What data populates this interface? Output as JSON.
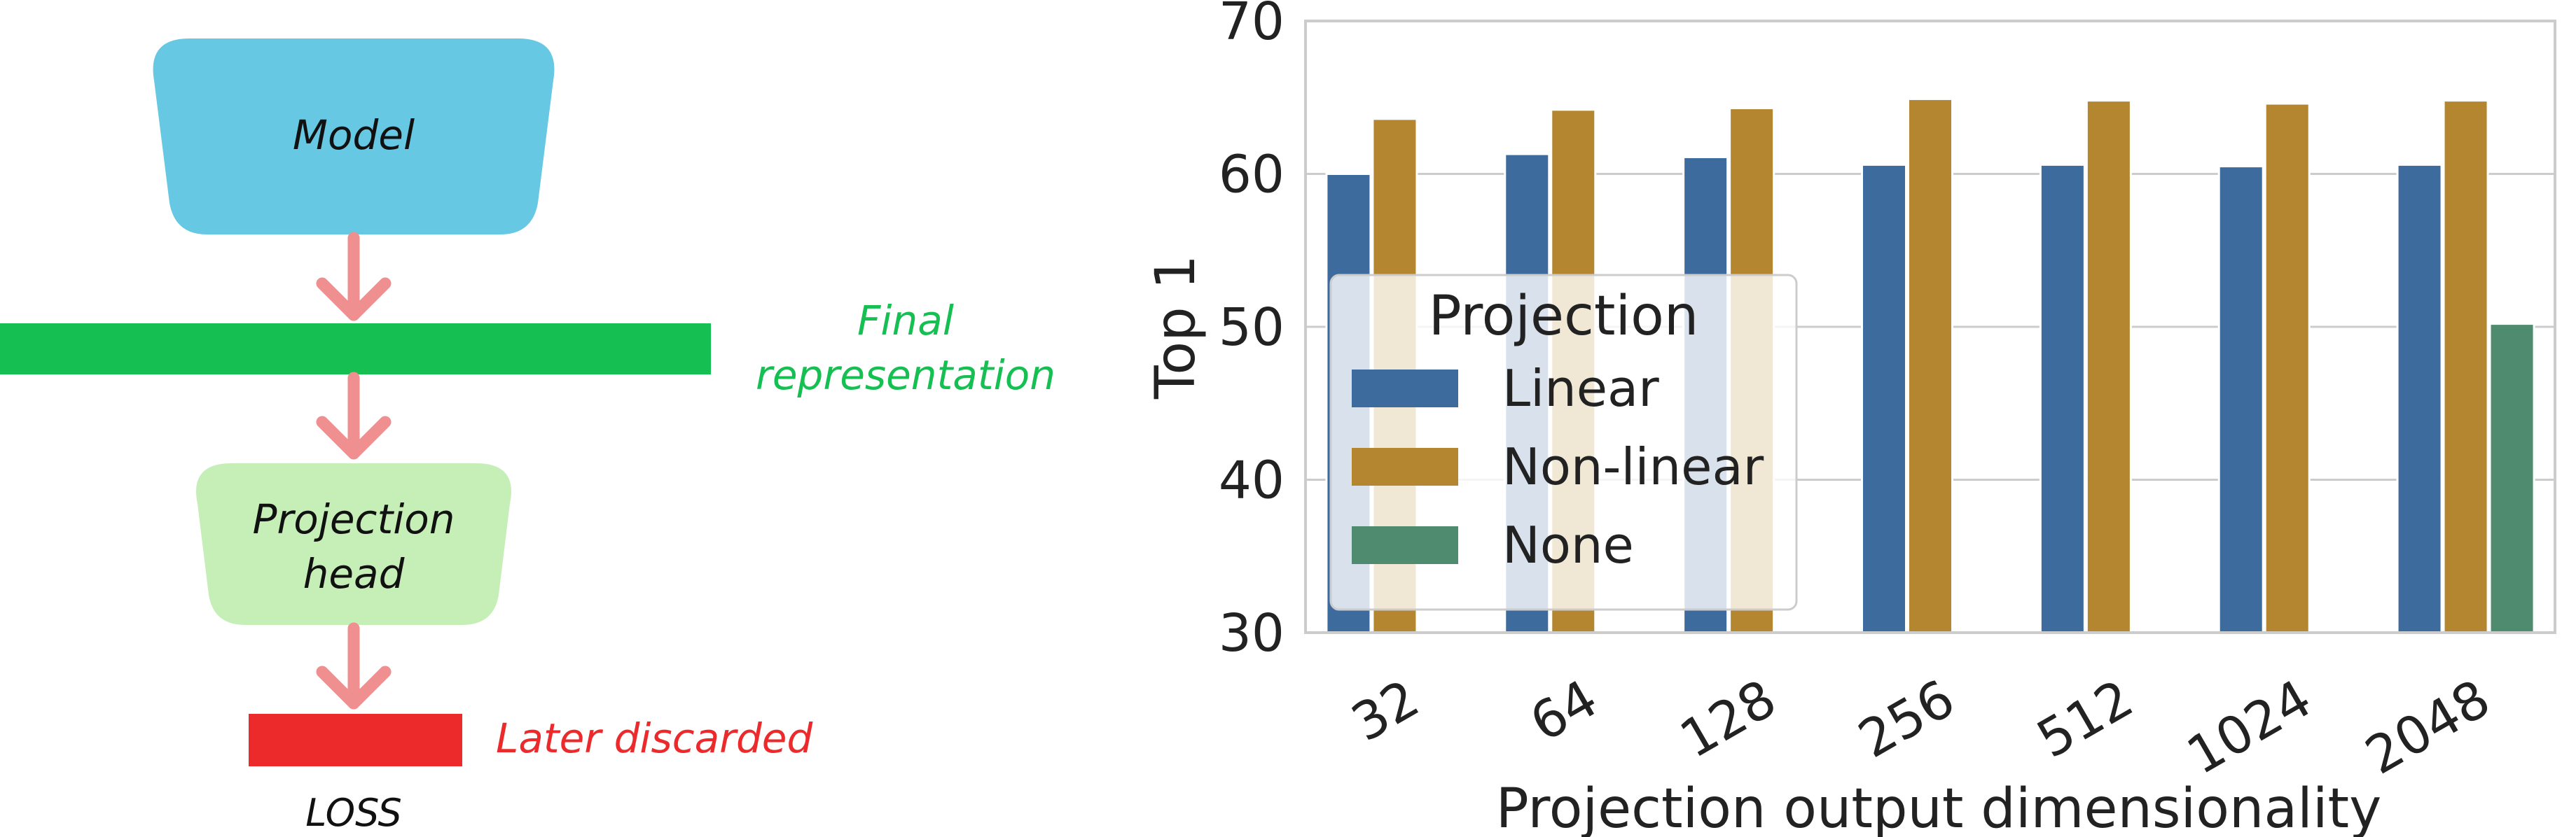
{
  "diagram": {
    "model_label": "Model",
    "final_representation_line1": "Final",
    "final_representation_line2": "representation",
    "projection_head_line1": "Projection",
    "projection_head_line2": "head",
    "later_discarded_label": "Later discarded",
    "loss_label": "LOSS",
    "colors": {
      "model": "#67c8e3",
      "representation": "#15bf52",
      "projection_head": "#c6efb8",
      "loss": "#ec2a2c",
      "arrow": "#ef8f8f"
    }
  },
  "chart_data": {
    "type": "bar",
    "title": "",
    "xlabel": "Projection output dimensionality",
    "ylabel": "Top 1",
    "ylim": [
      30,
      70
    ],
    "yticks": [
      30,
      40,
      50,
      60,
      70
    ],
    "grid": true,
    "categories": [
      "32",
      "64",
      "128",
      "256",
      "512",
      "1024",
      "2048"
    ],
    "legend": {
      "title": "Projection",
      "position": "center-left"
    },
    "series": [
      {
        "name": "Linear",
        "color": "#3d6b9e",
        "values": [
          60.0,
          61.3,
          61.1,
          60.6,
          60.6,
          60.5,
          60.6
        ]
      },
      {
        "name": "Non-linear",
        "color": "#b3862f",
        "values": [
          63.6,
          64.2,
          64.3,
          64.9,
          64.8,
          64.6,
          64.8
        ]
      },
      {
        "name": "None",
        "color": "#4f8b6e",
        "values": [
          null,
          null,
          null,
          null,
          null,
          null,
          50.2
        ]
      }
    ]
  }
}
